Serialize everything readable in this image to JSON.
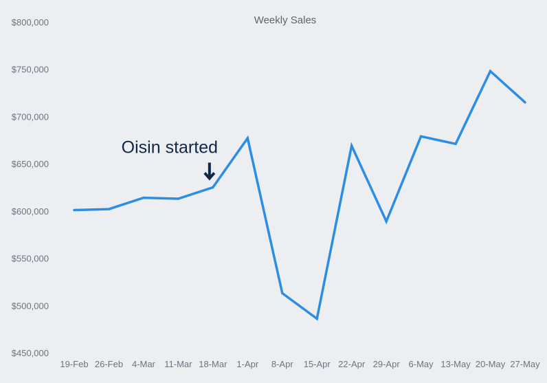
{
  "chart_data": {
    "type": "line",
    "title": "Weekly Sales",
    "xlabel": "",
    "ylabel": "",
    "categories": [
      "19-Feb",
      "26-Feb",
      "4-Mar",
      "11-Mar",
      "18-Mar",
      "1-Apr",
      "8-Apr",
      "15-Apr",
      "22-Apr",
      "29-Apr",
      "6-May",
      "13-May",
      "20-May",
      "27-May"
    ],
    "series": [
      {
        "values": [
          601000,
          602000,
          614000,
          613000,
          625000,
          677000,
          513000,
          486000,
          669000,
          589000,
          679000,
          671000,
          748000,
          715000
        ]
      }
    ],
    "ylim": [
      450000,
      800000
    ],
    "yticks": [
      450000,
      500000,
      550000,
      600000,
      650000,
      700000,
      750000,
      800000
    ],
    "ytick_labels": [
      "$450,000",
      "$500,000",
      "$550,000",
      "$600,000",
      "$650,000",
      "$700,000",
      "$750,000",
      "$800,000"
    ],
    "grid": false,
    "legend": "none",
    "line_color": "#2b8de4",
    "annotation": {
      "text": "Oisin started",
      "category": "18-Mar",
      "arrow": "down",
      "color": "#0f2747"
    }
  }
}
